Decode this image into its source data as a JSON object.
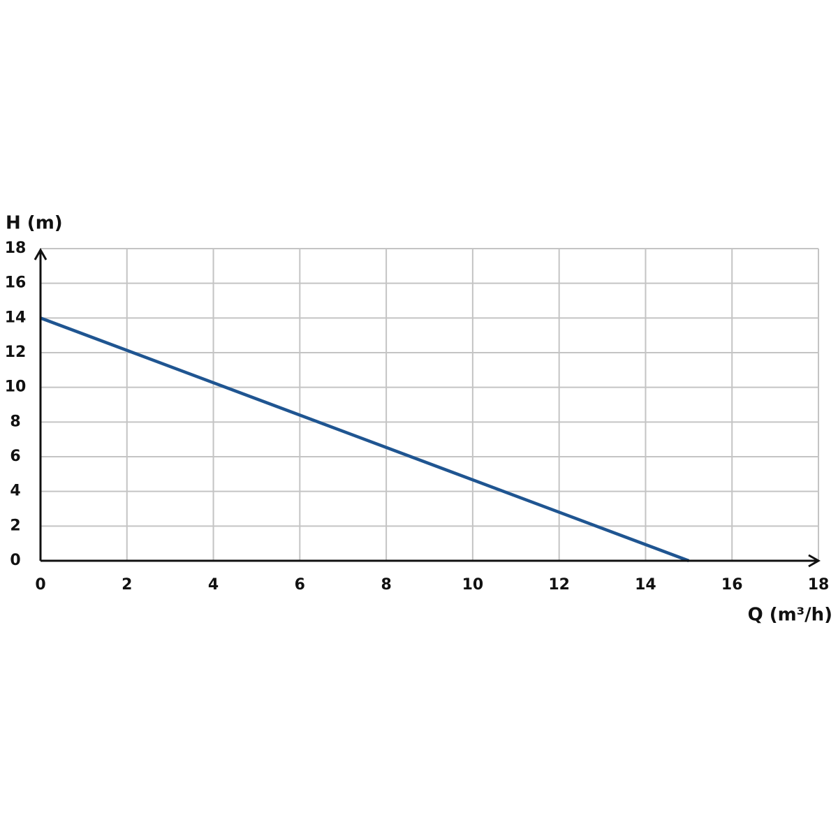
{
  "chart_data": {
    "type": "line",
    "x_label": "Q (m³/h)",
    "y_label": "H (m)",
    "x": [
      0,
      15
    ],
    "series": [
      {
        "name": null,
        "color": "#1f5591",
        "values": [
          14,
          0
        ]
      }
    ],
    "xlim": [
      0,
      18
    ],
    "xticks": [
      0,
      2,
      4,
      6,
      8,
      10,
      12,
      14,
      16,
      18
    ],
    "ylim": [
      0,
      18
    ],
    "yticks": [
      0,
      2,
      4,
      6,
      8,
      10,
      12,
      14,
      16,
      18
    ],
    "grid": true
  }
}
